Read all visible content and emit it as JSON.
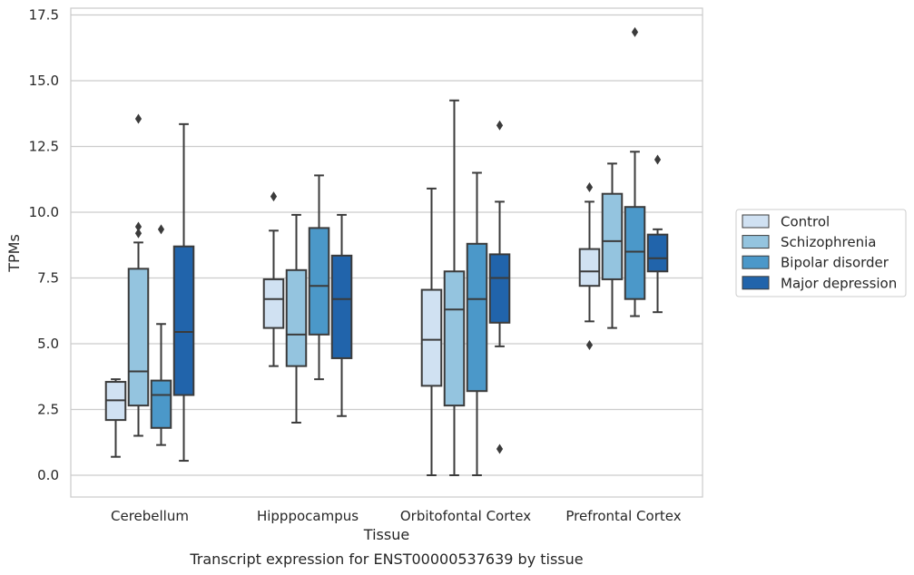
{
  "chart_data": {
    "type": "box",
    "xlabel": "Tissue",
    "ylabel": "TPMs",
    "caption": "Transcript expression for ENST00000537639 by tissue",
    "ylim": [
      -0.8,
      17.7
    ],
    "yticks": [
      "0.0",
      "2.5",
      "5.0",
      "7.5",
      "10.0",
      "12.5",
      "15.0",
      "17.5"
    ],
    "grid": "horizontal",
    "legend_position": "right",
    "categories": [
      "Cerebellum",
      "Hipppocampus",
      "Orbitofontal Cortex",
      "Prefrontal Cortex"
    ],
    "series": [
      {
        "name": "Control",
        "color": "#d0e1f2",
        "boxes": [
          {
            "whislo": 0.7,
            "q1": 2.1,
            "med": 2.85,
            "q3": 3.55,
            "whishi": 3.65,
            "fliers": []
          },
          {
            "whislo": 4.15,
            "q1": 5.6,
            "med": 6.7,
            "q3": 7.45,
            "whishi": 9.3,
            "fliers": [
              10.6
            ]
          },
          {
            "whislo": 0.0,
            "q1": 3.4,
            "med": 5.15,
            "q3": 7.05,
            "whishi": 10.9,
            "fliers": []
          },
          {
            "whislo": 5.85,
            "q1": 7.2,
            "med": 7.75,
            "q3": 8.6,
            "whishi": 10.4,
            "fliers": [
              4.95,
              10.95
            ]
          }
        ]
      },
      {
        "name": "Schizophrenia",
        "color": "#94c4df",
        "boxes": [
          {
            "whislo": 1.5,
            "q1": 2.65,
            "med": 3.95,
            "q3": 7.85,
            "whishi": 8.85,
            "fliers": [
              9.2,
              9.45,
              13.55
            ]
          },
          {
            "whislo": 2.0,
            "q1": 4.15,
            "med": 5.35,
            "q3": 7.8,
            "whishi": 9.9,
            "fliers": []
          },
          {
            "whislo": 0.0,
            "q1": 2.65,
            "med": 6.3,
            "q3": 7.75,
            "whishi": 14.25,
            "fliers": []
          },
          {
            "whislo": 5.6,
            "q1": 7.45,
            "med": 8.9,
            "q3": 10.7,
            "whishi": 11.85,
            "fliers": []
          }
        ]
      },
      {
        "name": "Bipolar disorder",
        "color": "#4b98c9",
        "boxes": [
          {
            "whislo": 1.15,
            "q1": 1.8,
            "med": 3.05,
            "q3": 3.6,
            "whishi": 5.75,
            "fliers": [
              9.35
            ]
          },
          {
            "whislo": 3.65,
            "q1": 5.35,
            "med": 7.2,
            "q3": 9.4,
            "whishi": 11.4,
            "fliers": []
          },
          {
            "whislo": 0.0,
            "q1": 3.2,
            "med": 6.7,
            "q3": 8.8,
            "whishi": 11.5,
            "fliers": []
          },
          {
            "whislo": 6.05,
            "q1": 6.7,
            "med": 8.5,
            "q3": 10.2,
            "whishi": 12.3,
            "fliers": [
              16.85
            ]
          }
        ]
      },
      {
        "name": "Major depression",
        "color": "#2164ab",
        "boxes": [
          {
            "whislo": 0.55,
            "q1": 3.05,
            "med": 5.45,
            "q3": 8.7,
            "whishi": 13.35,
            "fliers": []
          },
          {
            "whislo": 2.25,
            "q1": 4.45,
            "med": 6.7,
            "q3": 8.35,
            "whishi": 9.9,
            "fliers": []
          },
          {
            "whislo": 4.9,
            "q1": 5.8,
            "med": 7.5,
            "q3": 8.4,
            "whishi": 10.4,
            "fliers": [
              1.0,
              13.3
            ]
          },
          {
            "whislo": 6.2,
            "q1": 7.75,
            "med": 8.25,
            "q3": 9.15,
            "whishi": 9.35,
            "fliers": [
              12.0
            ]
          }
        ]
      }
    ]
  }
}
